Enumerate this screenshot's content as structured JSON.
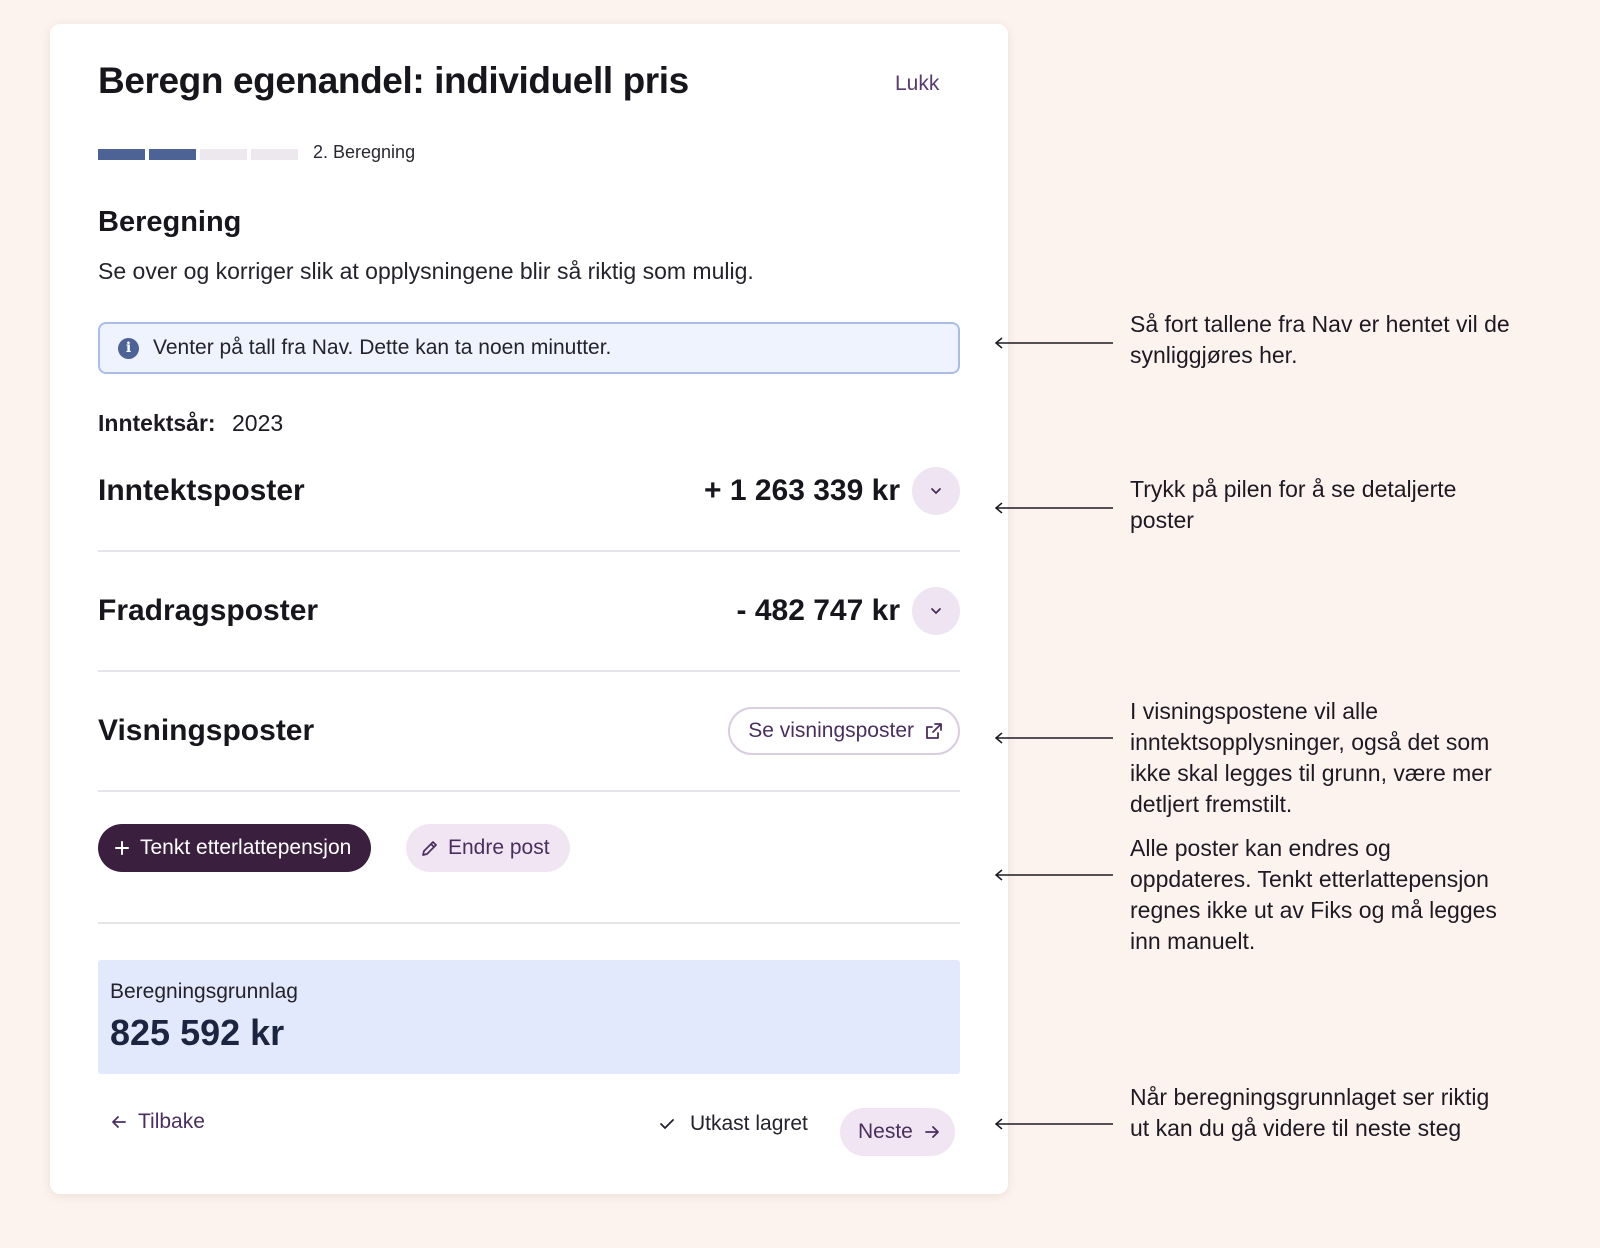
{
  "modal": {
    "title": "Beregn egenandel: individuell pris",
    "close_label": "Lukk",
    "progress": {
      "total_steps": 4,
      "completed_steps": 2,
      "step_label": "2. Beregning"
    },
    "section_title": "Beregning",
    "section_subtitle": "Se over og korriger slik at opplysningene blir så riktig som mulig.",
    "info_alert": "Venter på tall fra Nav. Dette kan ta noen minutter.",
    "income_year": {
      "label": "Inntektsår:",
      "value": "2023"
    },
    "posts": [
      {
        "title": "Inntektsposter",
        "amount": "+ 1 263 339 kr"
      },
      {
        "title": "Fradragsposter",
        "amount": "- 482 747 kr"
      },
      {
        "title": "Visningsposter",
        "button_label": "Se visningsposter"
      }
    ],
    "actions": {
      "add_label": "Tenkt etterlattepensjon",
      "edit_label": "Endre post"
    },
    "summary": {
      "label": "Beregningsgrunnlag",
      "value": "825 592 kr"
    },
    "footer": {
      "back_label": "Tilbake",
      "saved_label": "Utkast lagret",
      "next_label": "Neste"
    }
  },
  "annotations": [
    "Så fort tallene fra Nav er hentet vil de synliggjøres her.",
    "Trykk på pilen for å se detaljerte poster",
    "I visningspostene vil alle inntektsopplysninger, også det som ikke skal legges til grunn, være mer detljert fremstilt.",
    "Alle poster kan endres og oppdateres. Tenkt etterlattepensjon regnes ikke ut av Fiks og må legges inn manuelt.",
    "Når beregningsgrunnlaget ser riktig ut kan du gå videre til neste steg"
  ],
  "colors": {
    "background": "#fdf3ee",
    "primary": "#3b1f3f",
    "accent_text": "#4a2f5e",
    "progress_done": "#4d6295",
    "info_bg": "#eef3fd",
    "summary_bg": "#e2e9fc"
  }
}
